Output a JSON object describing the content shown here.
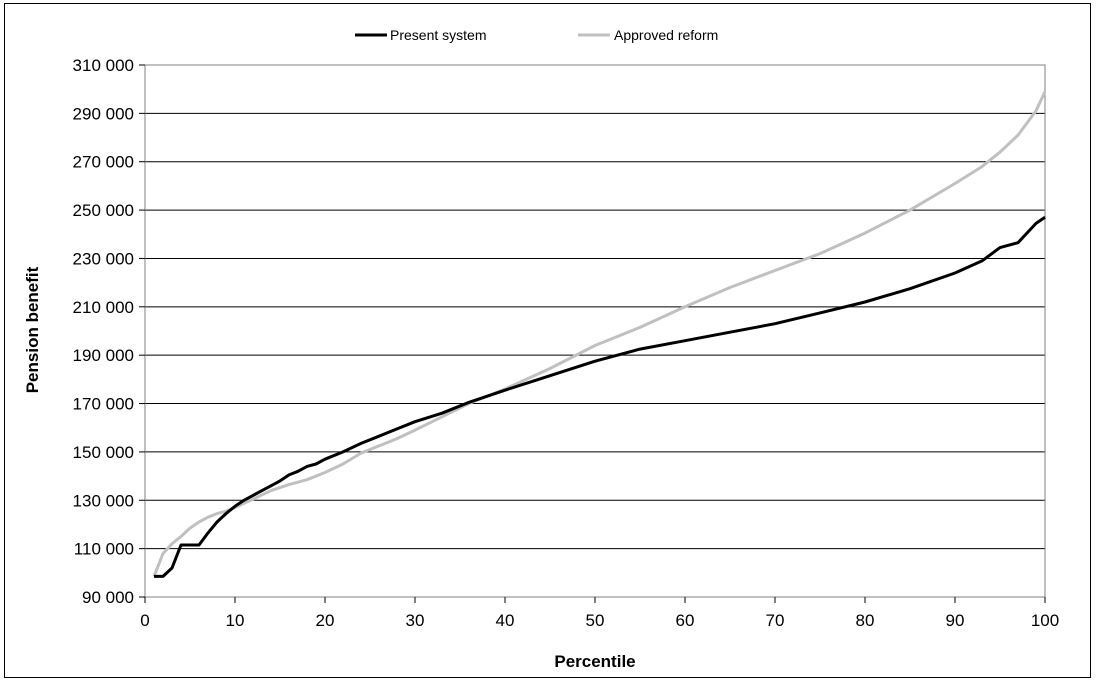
{
  "chart_data": {
    "type": "line",
    "title": "",
    "xlabel": "Percentile",
    "ylabel": "Pension benefit",
    "xlim": [
      0,
      100
    ],
    "ylim": [
      90000,
      310000
    ],
    "x_ticks": [
      0,
      10,
      20,
      30,
      40,
      50,
      60,
      70,
      80,
      90,
      100
    ],
    "y_ticks": [
      90000,
      110000,
      130000,
      150000,
      170000,
      190000,
      210000,
      230000,
      250000,
      270000,
      290000,
      310000
    ],
    "x_tick_labels": [
      "0",
      "10",
      "20",
      "30",
      "40",
      "50",
      "60",
      "70",
      "80",
      "90",
      "100"
    ],
    "y_tick_labels": [
      "90 000",
      "110 000",
      "130 000",
      "150 000",
      "170 000",
      "190 000",
      "210 000",
      "230 000",
      "250 000",
      "270 000",
      "290 000",
      "310 000"
    ],
    "grid": "horizontal",
    "legend_position": "top-center",
    "series": [
      {
        "name": "Present system",
        "color": "#000000",
        "x": [
          1,
          2,
          3,
          4,
          5,
          6,
          7,
          8,
          9,
          10,
          11,
          12,
          13,
          14,
          15,
          16,
          17,
          18,
          19,
          20,
          22,
          24,
          26,
          28,
          30,
          33,
          36,
          40,
          45,
          50,
          55,
          60,
          65,
          70,
          75,
          80,
          85,
          90,
          93,
          95,
          97,
          99,
          100
        ],
        "values": [
          98500,
          98500,
          102000,
          111500,
          111500,
          111500,
          116500,
          121000,
          124500,
          127500,
          130000,
          132000,
          134000,
          136000,
          138000,
          140500,
          142000,
          144000,
          145000,
          147000,
          150000,
          153500,
          156500,
          159500,
          162500,
          166000,
          170500,
          175500,
          181500,
          187500,
          192500,
          196000,
          199500,
          203000,
          207500,
          212000,
          217500,
          224000,
          229000,
          234500,
          236500,
          244500,
          247000
        ]
      },
      {
        "name": "Approved reform",
        "color": "#c0c0c0",
        "x": [
          1,
          2,
          3,
          4,
          5,
          6,
          7,
          8,
          9,
          10,
          12,
          14,
          16,
          18,
          20,
          22,
          24,
          26,
          28,
          30,
          33,
          36,
          40,
          45,
          50,
          55,
          60,
          65,
          70,
          75,
          80,
          85,
          90,
          93,
          95,
          97,
          99,
          100
        ],
        "values": [
          98500,
          108000,
          112000,
          115000,
          118500,
          121000,
          123000,
          124500,
          125500,
          127000,
          130500,
          134000,
          136500,
          138500,
          141500,
          145000,
          149500,
          152500,
          155500,
          159000,
          164500,
          170000,
          176000,
          184500,
          194000,
          201500,
          210000,
          218000,
          225000,
          232000,
          240500,
          250000,
          261000,
          268000,
          274000,
          281000,
          291000,
          299000
        ]
      }
    ]
  }
}
